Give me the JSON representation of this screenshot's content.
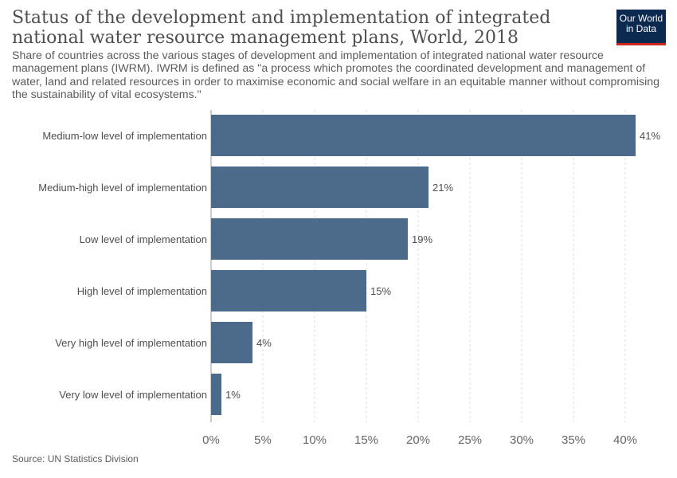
{
  "header": {
    "title": "Status of the development and implementation of integrated national water resource management plans, World, 2018",
    "subtitle": "Share of countries across the various stages of development and implementation of integrated national water resource management plans (IWRM). IWRM is defined as \"a process which promotes the coordinated development and management of water, land and related resources in order to maximise economic and social welfare in an equitable manner without compromising the sustainability of vital ecosystems.\""
  },
  "logo": {
    "line1": "Our World",
    "line2": "in Data"
  },
  "footer": {
    "source": "Source: UN Statistics Division"
  },
  "colors": {
    "bar": "#4c6a8a",
    "grid": "#dddddd",
    "text": "#4e4e4e"
  },
  "chart_data": {
    "type": "bar",
    "orientation": "horizontal",
    "categories": [
      "Medium-low level of implementation",
      "Medium-high level of implementation",
      "Low level of implementation",
      "High level of implementation",
      "Very high level of implementation",
      "Very low level of implementation"
    ],
    "values": [
      41,
      21,
      19,
      15,
      4,
      1
    ],
    "value_labels": [
      "41%",
      "21%",
      "19%",
      "15%",
      "4%",
      "1%"
    ],
    "xlim": [
      0,
      40
    ],
    "xticks": [
      0,
      5,
      10,
      15,
      20,
      25,
      30,
      35,
      40
    ],
    "xtick_labels": [
      "0%",
      "5%",
      "10%",
      "15%",
      "20%",
      "25%",
      "30%",
      "35%",
      "40%"
    ],
    "grid": true,
    "legend": "none"
  }
}
